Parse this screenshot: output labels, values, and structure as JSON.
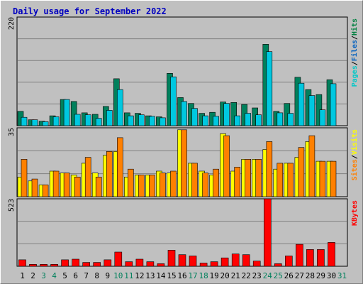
{
  "chart_data": {
    "type": "bar",
    "title": "Daily usage for September 2022",
    "days": [
      "1",
      "2",
      "3",
      "4",
      "5",
      "6",
      "7",
      "8",
      "9",
      "10",
      "11",
      "12",
      "13",
      "14",
      "15",
      "16",
      "17",
      "18",
      "19",
      "20",
      "21",
      "22",
      "23",
      "24",
      "25",
      "26",
      "27",
      "28",
      "29",
      "30",
      "31"
    ],
    "weekend_days": [
      "3",
      "4",
      "10",
      "11",
      "17",
      "18",
      "24",
      "25",
      "31"
    ],
    "panels": [
      {
        "id": "hits-panel",
        "max_label": "220",
        "ymax": 220,
        "side_labels": [
          "Pages",
          "Files",
          "Hits"
        ],
        "side_colors": [
          "#00c8c8",
          "#0060c0",
          "#008040"
        ],
        "series": [
          {
            "name": "Hits",
            "color": "#00805c",
            "values": [
              29,
              12,
              9,
              20,
              53,
              49,
              26,
              23,
              39,
              95,
              26,
              25,
              20,
              18,
              106,
              57,
              45,
              25,
              27,
              48,
              47,
              43,
              36,
              165,
              29,
              45,
              98,
              73,
              63,
              93,
              0
            ]
          },
          {
            "name": "Files",
            "color": "#00c8e0",
            "values": [
              17,
              12,
              8,
              18,
              53,
              23,
              22,
              15,
              31,
              73,
              20,
              22,
              19,
              16,
              99,
              49,
              35,
              20,
              19,
              45,
              20,
              25,
              22,
              150,
              26,
              25,
              86,
              61,
              32,
              85,
              0
            ]
          },
          {
            "name": "Pages",
            "color": "#00e0e0",
            "values": [
              0,
              0,
              0,
              0,
              0,
              0,
              0,
              0,
              0,
              0,
              0,
              0,
              0,
              0,
              0,
              0,
              0,
              0,
              0,
              0,
              0,
              0,
              0,
              0,
              0,
              0,
              0,
              0,
              0,
              0,
              0
            ]
          }
        ]
      },
      {
        "id": "visits-panel",
        "max_label": "35",
        "ymax": 35,
        "side_labels": [
          "Sites",
          "Visits"
        ],
        "side_colors": [
          "#ff8000",
          "#ffff00"
        ],
        "series": [
          {
            "name": "Visits",
            "color": "#ffff00",
            "values": [
              10,
              8,
              6,
              13,
              12,
              11,
              17,
              12,
              21,
              23,
              10,
              11,
              11,
              13,
              12,
              34,
              17,
              13,
              11,
              32,
              13,
              19,
              19,
              24,
              14,
              17,
              20,
              28,
              18,
              18,
              0
            ]
          },
          {
            "name": "Sites",
            "color": "#ff8000",
            "values": [
              19,
              9,
              6,
              13,
              12,
              10,
              20,
              10,
              23,
              30,
              14,
              11,
              11,
              12,
              13,
              34,
              17,
              12,
              14,
              31,
              15,
              19,
              19,
              28,
              17,
              17,
              25,
              31,
              18,
              18,
              0
            ]
          }
        ]
      },
      {
        "id": "kbytes-panel",
        "max_label": "523",
        "ymax": 523,
        "side_labels": [
          "KBytes"
        ],
        "side_colors": [
          "#ff0000"
        ],
        "series": [
          {
            "name": "KBytes",
            "color": "#ff0000",
            "values": [
              50,
              15,
              15,
              15,
              50,
              55,
              30,
              30,
              50,
              110,
              35,
              55,
              35,
              20,
              125,
              90,
              80,
              25,
              35,
              65,
              95,
              90,
              40,
              523,
              20,
              80,
              170,
              130,
              130,
              185,
              0
            ]
          }
        ]
      }
    ]
  }
}
